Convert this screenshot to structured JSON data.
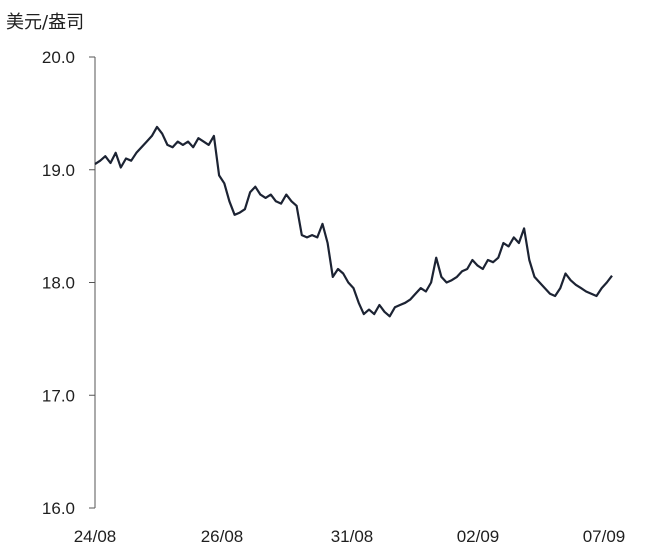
{
  "chart_data": {
    "type": "line",
    "ylabel": "美元/盎司",
    "ylim": [
      16.0,
      20.0
    ],
    "y_ticks": [
      "20.0",
      "19.0",
      "18.0",
      "17.0",
      "16.0"
    ],
    "x_ticks": [
      "24/08",
      "26/08",
      "31/08",
      "02/09",
      "07/09"
    ],
    "series": [
      {
        "color": "#1c2333",
        "x": [
          0,
          2,
          4,
          6,
          8,
          10,
          12,
          14,
          16,
          18,
          20,
          22,
          24,
          26,
          28,
          30,
          32,
          34,
          36,
          38,
          40,
          42,
          44,
          46,
          48,
          50,
          52,
          54,
          56,
          58,
          60,
          62,
          64,
          66,
          68,
          70,
          72,
          74,
          76,
          78,
          80,
          82,
          84,
          86,
          88,
          90,
          92,
          94,
          96,
          98,
          100,
          102,
          104,
          106,
          108,
          110,
          112,
          114,
          116,
          118,
          120,
          122,
          124,
          126,
          128,
          130,
          132,
          134,
          136,
          138,
          140,
          142,
          144,
          146,
          148,
          150,
          152,
          154,
          156,
          158,
          160,
          162,
          164,
          166,
          168,
          170,
          172,
          174,
          176,
          178,
          180,
          182,
          184,
          186,
          188,
          190,
          192,
          194,
          196,
          198,
          200
        ],
        "values": [
          19.05,
          19.08,
          19.12,
          19.06,
          19.15,
          19.02,
          19.1,
          19.08,
          19.15,
          19.2,
          19.25,
          19.3,
          19.38,
          19.32,
          19.22,
          19.2,
          19.25,
          19.22,
          19.25,
          19.2,
          19.28,
          19.25,
          19.22,
          19.3,
          18.95,
          18.88,
          18.72,
          18.6,
          18.62,
          18.65,
          18.8,
          18.85,
          18.78,
          18.75,
          18.78,
          18.72,
          18.7,
          18.78,
          18.72,
          18.68,
          18.42,
          18.4,
          18.42,
          18.4,
          18.52,
          18.35,
          18.05,
          18.12,
          18.08,
          18.0,
          17.95,
          17.82,
          17.72,
          17.76,
          17.72,
          17.8,
          17.74,
          17.7,
          17.78,
          17.8,
          17.82,
          17.85,
          17.9,
          17.95,
          17.92,
          18.0,
          18.22,
          18.05,
          18.0,
          18.02,
          18.05,
          18.1,
          18.12,
          18.2,
          18.15,
          18.12,
          18.2,
          18.18,
          18.22,
          18.35,
          18.32,
          18.4,
          18.35,
          18.48,
          18.2,
          18.05,
          18.0,
          17.95,
          17.9,
          17.88,
          17.95,
          18.08,
          18.02,
          17.98,
          17.95,
          17.92,
          17.9,
          17.88,
          17.95,
          18.0,
          18.06
        ]
      }
    ]
  }
}
